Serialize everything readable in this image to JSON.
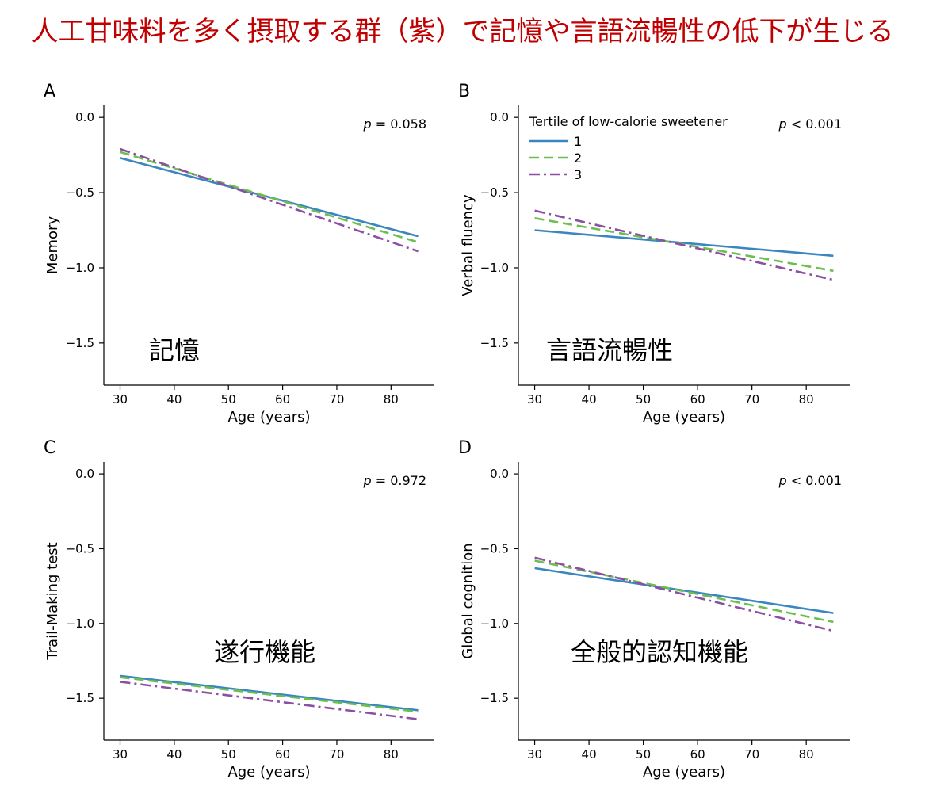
{
  "headline": "人工甘味料を多く摂取する群（紫）で記憶や言語流暢性の低下が生じる",
  "series_styles": [
    {
      "id": "1",
      "color": "#3a86c0",
      "dash": "none"
    },
    {
      "id": "2",
      "color": "#6bbf4f",
      "dash": "dashed"
    },
    {
      "id": "3",
      "color": "#8c4fa3",
      "dash": "dash-dot"
    }
  ],
  "legend": {
    "title": "Tertile of low-calorie sweetener",
    "placement": "top-left of panel B",
    "entries": [
      "1",
      "2",
      "3"
    ]
  },
  "chart_data": [
    {
      "type": "line",
      "panel": "A",
      "xlabel": "Age (years)",
      "ylabel": "Memory",
      "xlim": [
        27,
        88
      ],
      "ylim": [
        -1.78,
        0.08
      ],
      "xticks": [
        "30",
        "40",
        "50",
        "60",
        "70",
        "80"
      ],
      "yticks": [
        "0.0",
        "−0.5",
        "−1.0",
        "−1.5"
      ],
      "xtick_values": [
        30,
        40,
        50,
        60,
        70,
        80
      ],
      "ytick_values": [
        0.0,
        -0.5,
        -1.0,
        -1.5
      ],
      "p_label": "p",
      "p_value": "= 0.058",
      "annotation": "記憶",
      "series": [
        {
          "name": "1",
          "x": [
            30,
            85
          ],
          "y": [
            -0.27,
            -0.79
          ]
        },
        {
          "name": "2",
          "x": [
            30,
            85
          ],
          "y": [
            -0.23,
            -0.83
          ]
        },
        {
          "name": "3",
          "x": [
            30,
            85
          ],
          "y": [
            -0.21,
            -0.89
          ]
        }
      ]
    },
    {
      "type": "line",
      "panel": "B",
      "xlabel": "Age (years)",
      "ylabel": "Verbal fluency",
      "xlim": [
        27,
        88
      ],
      "ylim": [
        -1.78,
        0.08
      ],
      "xticks": [
        "30",
        "40",
        "50",
        "60",
        "70",
        "80"
      ],
      "yticks": [
        "0.0",
        "−0.5",
        "−1.0",
        "−1.5"
      ],
      "xtick_values": [
        30,
        40,
        50,
        60,
        70,
        80
      ],
      "ytick_values": [
        0.0,
        -0.5,
        -1.0,
        -1.5
      ],
      "p_label": "p",
      "p_value": "< 0.001",
      "annotation": "言語流暢性",
      "series": [
        {
          "name": "1",
          "x": [
            30,
            85
          ],
          "y": [
            -0.75,
            -0.92
          ]
        },
        {
          "name": "2",
          "x": [
            30,
            85
          ],
          "y": [
            -0.67,
            -1.02
          ]
        },
        {
          "name": "3",
          "x": [
            30,
            85
          ],
          "y": [
            -0.62,
            -1.08
          ]
        }
      ]
    },
    {
      "type": "line",
      "panel": "C",
      "xlabel": "Age (years)",
      "ylabel": "Trail-Making test",
      "xlim": [
        27,
        88
      ],
      "ylim": [
        -1.78,
        0.08
      ],
      "xticks": [
        "30",
        "40",
        "50",
        "60",
        "70",
        "80"
      ],
      "yticks": [
        "0.0",
        "−0.5",
        "−1.0",
        "−1.5"
      ],
      "xtick_values": [
        30,
        40,
        50,
        60,
        70,
        80
      ],
      "ytick_values": [
        0.0,
        -0.5,
        -1.0,
        -1.5
      ],
      "p_label": "p",
      "p_value": "= 0.972",
      "annotation": "遂行機能",
      "series": [
        {
          "name": "1",
          "x": [
            30,
            85
          ],
          "y": [
            -1.35,
            -1.58
          ]
        },
        {
          "name": "2",
          "x": [
            30,
            85
          ],
          "y": [
            -1.36,
            -1.59
          ]
        },
        {
          "name": "3",
          "x": [
            30,
            85
          ],
          "y": [
            -1.39,
            -1.64
          ]
        }
      ]
    },
    {
      "type": "line",
      "panel": "D",
      "xlabel": "Age (years)",
      "ylabel": "Global cognition",
      "xlim": [
        27,
        88
      ],
      "ylim": [
        -1.78,
        0.08
      ],
      "xticks": [
        "30",
        "40",
        "50",
        "60",
        "70",
        "80"
      ],
      "yticks": [
        "0.0",
        "−0.5",
        "−1.0",
        "−1.5"
      ],
      "xtick_values": [
        30,
        40,
        50,
        60,
        70,
        80
      ],
      "ytick_values": [
        0.0,
        -0.5,
        -1.0,
        -1.5
      ],
      "p_label": "p",
      "p_value": "< 0.001",
      "annotation": "全般的認知機能",
      "series": [
        {
          "name": "1",
          "x": [
            30,
            85
          ],
          "y": [
            -0.63,
            -0.93
          ]
        },
        {
          "name": "2",
          "x": [
            30,
            85
          ],
          "y": [
            -0.58,
            -0.99
          ]
        },
        {
          "name": "3",
          "x": [
            30,
            85
          ],
          "y": [
            -0.56,
            -1.05
          ]
        }
      ]
    }
  ]
}
